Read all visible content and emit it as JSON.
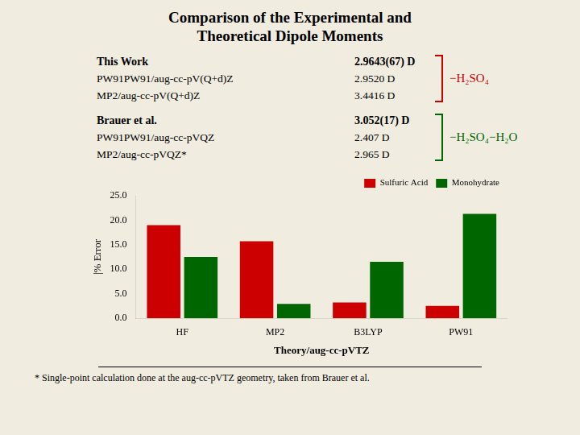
{
  "chart_data": {
    "type": "bar",
    "title": [
      "Comparison of the Experimental and",
      "Theoretical Dipole Moments"
    ],
    "annotations": [
      {
        "rows": [
          [
            "This Work",
            "2.9643(67) D"
          ],
          [
            "PW91PW91/aug-cc-pV(Q+d)Z",
            "2.9520 D"
          ],
          [
            "MP2/aug-cc-pV(Q+d)Z",
            "3.4416 D"
          ]
        ],
        "bracket": "−H₂SO₄",
        "color": "#cc0000"
      },
      {
        "rows": [
          [
            "Brauer et al.",
            "3.052(17) D"
          ],
          [
            "PW91PW91/aug-cc-pVQZ",
            "2.407 D"
          ],
          [
            "MP2/aug-cc-pVQZ*",
            "2.965 D"
          ]
        ],
        "bracket": "−H₂SO₄−H₂O",
        "color": "#006600"
      },
      "* Single-point calculation done at the aug-cc-pVTZ geometry, taken from Brauer et al."
    ],
    "categories": [
      "HF",
      "MP2",
      "B3LYP",
      "PW91"
    ],
    "series": [
      {
        "name": "Sulfuric Acid",
        "color": "#cc0000",
        "values": [
          19.0,
          15.7,
          3.2,
          2.5
        ]
      },
      {
        "name": "Monohydrate",
        "color": "#006600",
        "values": [
          12.5,
          2.9,
          11.5,
          21.3
        ]
      }
    ],
    "xlabel": "Theory/aug-cc-pVTZ",
    "ylabel": "|% Error",
    "ylim": [
      0,
      25.0
    ],
    "yticks": [
      {
        "value": 0.0,
        "label": "0.0"
      },
      {
        "value": 5.0,
        "label": "5.0"
      },
      {
        "value": 10.0,
        "label": "10.0"
      },
      {
        "value": 15.0,
        "label": "15.0"
      },
      {
        "value": 20.0,
        "label": "20.0"
      },
      {
        "value": 25.0,
        "label": "25.0"
      }
    ],
    "legend": "upper right",
    "grid": false
  }
}
